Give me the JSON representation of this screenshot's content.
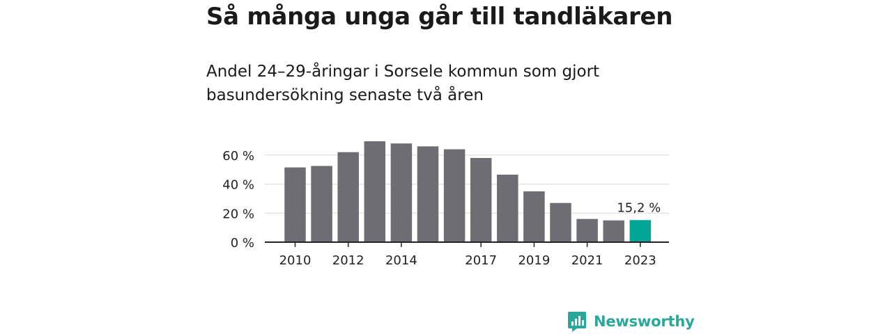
{
  "title": "Så många unga går till tandläkaren",
  "subtitle": "Andel 24–29-åringar i Sorsele kommun som gjort basundersökning senaste två åren",
  "brand": {
    "name": "Newsworthy",
    "icon": "newsworthy-logo-icon",
    "color": "#2aa79b"
  },
  "chart_data": {
    "type": "bar",
    "x": [
      2010,
      2011,
      2012,
      2013,
      2014,
      2015,
      2016,
      2017,
      2018,
      2019,
      2020,
      2021,
      2022,
      2023
    ],
    "values": [
      51.5,
      52.5,
      62,
      69.5,
      68,
      66,
      64,
      58,
      46.5,
      35,
      27,
      16,
      15,
      15.2
    ],
    "x_tick_labels": [
      "2010",
      "2012",
      "2014",
      "2017",
      "2019",
      "2021",
      "2023"
    ],
    "y_ticks": [
      0,
      20,
      40,
      60
    ],
    "y_tick_labels": [
      "0 %",
      "20 %",
      "40 %",
      "60 %"
    ],
    "ylim": [
      0,
      70
    ],
    "grid": true,
    "bar_color": "#6e6d73",
    "highlight_color": "#00a596",
    "highlight_index": 13,
    "annotation": "15,2 %"
  }
}
